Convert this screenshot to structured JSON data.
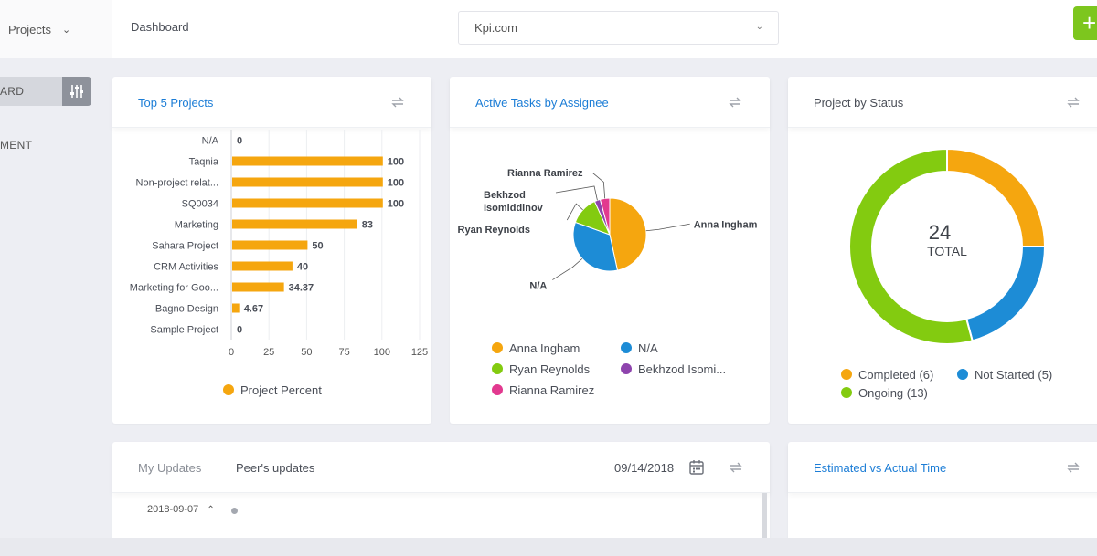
{
  "topbar": {
    "project_selector": "Projects",
    "breadcrumb": "Dashboard",
    "workspace_selector": "Kpi.com",
    "add_label": "+"
  },
  "sidebar": {
    "items": [
      {
        "label": "ARD"
      },
      {
        "label": "MENT"
      }
    ]
  },
  "cards": {
    "top5": {
      "title": "Top 5 Projects"
    },
    "tasks": {
      "title": "Active Tasks by Assignee"
    },
    "status": {
      "title": "Project by Status"
    },
    "updates": {
      "tab_my": "My Updates",
      "tab_peer": "Peer's updates",
      "date": "09/14/2018",
      "row_date": "2018-09-07"
    },
    "estimated": {
      "title": "Estimated vs Actual Time"
    }
  },
  "chart_data": [
    {
      "type": "bar",
      "orientation": "horizontal",
      "title": "Top 5 Projects",
      "categories": [
        "N/A",
        "Taqnia",
        "Non-project relat...",
        "SQ0034",
        "Marketing",
        "Sahara Project",
        "CRM Activities",
        "Marketing for Goo...",
        "Bagno Design",
        "Sample Project"
      ],
      "series": [
        {
          "name": "Project Percent",
          "color": "#f5a60f",
          "values": [
            0,
            100,
            100,
            100,
            83,
            50,
            40,
            34.37,
            4.67,
            0
          ]
        }
      ],
      "value_labels": [
        "0",
        "100",
        "100",
        "100",
        "83",
        "50",
        "40",
        "34.37",
        "4.67",
        "0"
      ],
      "xlim": [
        0,
        125
      ],
      "xticks": [
        "0",
        "25",
        "50",
        "75",
        "100",
        "125"
      ],
      "grid": true,
      "legend": "bottom"
    },
    {
      "type": "pie",
      "title": "Active Tasks by Assignee",
      "slices": [
        {
          "label": "Anna Ingham",
          "value": 11,
          "color": "#f5a60f"
        },
        {
          "label": "N/A",
          "value": 8,
          "color": "#1d8cd6"
        },
        {
          "label": "Ryan Reynolds",
          "value": 3,
          "color": "#83cb10"
        },
        {
          "label": "Bekhzod Isomiddinov",
          "value": 0.6,
          "color": "#8e44ad"
        },
        {
          "label": "Rianna Ramirez",
          "value": 1,
          "color": "#e2398f"
        }
      ],
      "legend_labels": [
        "Anna Ingham",
        "N/A",
        "Ryan Reynolds",
        "Bekhzod Isomi...",
        "Rianna Ramirez"
      ],
      "callout_labels": [
        "Anna Ingham",
        "N/A",
        "Ryan Reynolds",
        "Bekhzod",
        "Isomiddinov",
        "Rianna Ramirez"
      ],
      "legend": "bottom"
    },
    {
      "type": "pie",
      "variant": "donut",
      "title": "Project by Status",
      "center_value": "24",
      "center_label": "TOTAL",
      "slices": [
        {
          "label": "Completed (6)",
          "value": 6,
          "color": "#f5a60f"
        },
        {
          "label": "Not Started (5)",
          "value": 5,
          "color": "#1d8cd6"
        },
        {
          "label": "Ongoing (13)",
          "value": 13,
          "color": "#83cb10"
        }
      ],
      "legend": "bottom"
    }
  ]
}
